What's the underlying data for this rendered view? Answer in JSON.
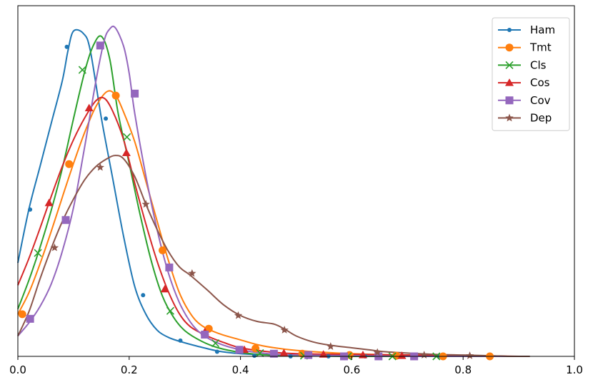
{
  "chart_data": {
    "type": "line",
    "title": "",
    "xlabel": "",
    "ylabel": "",
    "xlim": [
      0.0,
      1.0
    ],
    "ylim": [
      0.0,
      1.0
    ],
    "x_ticks": [
      {
        "value": 0.0,
        "label": "0.0"
      },
      {
        "value": 0.2,
        "label": "0.2"
      },
      {
        "value": 0.4,
        "label": "0.4"
      },
      {
        "value": 0.6,
        "label": "0.6"
      },
      {
        "value": 0.8,
        "label": "0.8"
      },
      {
        "value": 1.0,
        "label": "1.0"
      }
    ],
    "y_ticks_visible": false,
    "grid": false,
    "legend_position": "top-right",
    "series": [
      {
        "name": "Ham",
        "color": "#1f77b4",
        "marker": "dot",
        "curve": [
          [
            0.0,
            0.284
          ],
          [
            0.02,
            0.448
          ],
          [
            0.04,
            0.578
          ],
          [
            0.06,
            0.708
          ],
          [
            0.08,
            0.838
          ],
          [
            0.09,
            0.928
          ],
          [
            0.1,
            0.988
          ],
          [
            0.118,
            0.98
          ],
          [
            0.13,
            0.93
          ],
          [
            0.15,
            0.724
          ],
          [
            0.17,
            0.544
          ],
          [
            0.19,
            0.364
          ],
          [
            0.21,
            0.212
          ],
          [
            0.23,
            0.128
          ],
          [
            0.25,
            0.08
          ],
          [
            0.27,
            0.058
          ],
          [
            0.29,
            0.046
          ],
          [
            0.32,
            0.032
          ],
          [
            0.36,
            0.016
          ],
          [
            0.4,
            0.008
          ],
          [
            0.45,
            0.004
          ],
          [
            0.5,
            0.002
          ],
          [
            0.55,
            0.001
          ],
          [
            0.6,
            0.0
          ],
          [
            0.7,
            0.0
          ],
          [
            0.8,
            0.0
          ],
          [
            0.9,
            0.0
          ]
        ],
        "markers": [
          [
            0.022,
            0.446
          ],
          [
            0.088,
            0.94
          ],
          [
            0.158,
            0.722
          ],
          [
            0.225,
            0.186
          ],
          [
            0.292,
            0.048
          ],
          [
            0.358,
            0.014
          ],
          [
            0.425,
            0.002
          ],
          [
            0.49,
            0.0
          ],
          [
            0.558,
            0.0
          ],
          [
            0.624,
            0.0
          ],
          [
            0.69,
            0.0
          ],
          [
            0.757,
            0.0
          ]
        ]
      },
      {
        "name": "Tmt",
        "color": "#ff7f0e",
        "marker": "circle",
        "curve": [
          [
            0.0,
            0.128
          ],
          [
            0.02,
            0.194
          ],
          [
            0.04,
            0.282
          ],
          [
            0.06,
            0.38
          ],
          [
            0.08,
            0.484
          ],
          [
            0.1,
            0.586
          ],
          [
            0.12,
            0.68
          ],
          [
            0.14,
            0.758
          ],
          [
            0.16,
            0.804
          ],
          [
            0.175,
            0.794
          ],
          [
            0.19,
            0.742
          ],
          [
            0.21,
            0.652
          ],
          [
            0.23,
            0.532
          ],
          [
            0.25,
            0.412
          ],
          [
            0.27,
            0.294
          ],
          [
            0.29,
            0.194
          ],
          [
            0.31,
            0.13
          ],
          [
            0.33,
            0.094
          ],
          [
            0.36,
            0.07
          ],
          [
            0.4,
            0.05
          ],
          [
            0.44,
            0.032
          ],
          [
            0.5,
            0.018
          ],
          [
            0.6,
            0.008
          ],
          [
            0.7,
            0.004
          ],
          [
            0.8,
            0.002
          ],
          [
            0.85,
            0.0
          ],
          [
            0.91,
            0.0
          ]
        ],
        "markers": [
          [
            0.008,
            0.128
          ],
          [
            0.092,
            0.584
          ],
          [
            0.176,
            0.792
          ],
          [
            0.26,
            0.322
          ],
          [
            0.343,
            0.084
          ],
          [
            0.427,
            0.024
          ],
          [
            0.511,
            0.008
          ],
          [
            0.596,
            0.004
          ],
          [
            0.68,
            0.002
          ],
          [
            0.764,
            0.0
          ],
          [
            0.848,
            0.0
          ]
        ]
      },
      {
        "name": "Cls",
        "color": "#2ca02c",
        "marker": "x",
        "curve": [
          [
            0.0,
            0.144
          ],
          [
            0.02,
            0.232
          ],
          [
            0.04,
            0.332
          ],
          [
            0.06,
            0.444
          ],
          [
            0.08,
            0.572
          ],
          [
            0.1,
            0.722
          ],
          [
            0.12,
            0.864
          ],
          [
            0.135,
            0.942
          ],
          [
            0.15,
            0.972
          ],
          [
            0.165,
            0.904
          ],
          [
            0.18,
            0.74
          ],
          [
            0.2,
            0.586
          ],
          [
            0.22,
            0.428
          ],
          [
            0.24,
            0.288
          ],
          [
            0.26,
            0.182
          ],
          [
            0.28,
            0.118
          ],
          [
            0.3,
            0.078
          ],
          [
            0.33,
            0.046
          ],
          [
            0.36,
            0.026
          ],
          [
            0.4,
            0.012
          ],
          [
            0.45,
            0.004
          ],
          [
            0.5,
            0.002
          ],
          [
            0.6,
            0.0
          ],
          [
            0.7,
            0.0
          ],
          [
            0.8,
            0.0
          ],
          [
            0.9,
            0.0
          ]
        ],
        "markers": [
          [
            0.036,
            0.314
          ],
          [
            0.116,
            0.87
          ],
          [
            0.196,
            0.666
          ],
          [
            0.274,
            0.138
          ],
          [
            0.355,
            0.04
          ],
          [
            0.435,
            0.01
          ],
          [
            0.514,
            0.002
          ],
          [
            0.593,
            0.0
          ],
          [
            0.673,
            0.0
          ],
          [
            0.752,
            0.0
          ]
        ]
      },
      {
        "name": "Cos",
        "color": "#d62728",
        "marker": "triangle",
        "curve": [
          [
            0.0,
            0.216
          ],
          [
            0.02,
            0.298
          ],
          [
            0.04,
            0.39
          ],
          [
            0.06,
            0.486
          ],
          [
            0.08,
            0.578
          ],
          [
            0.1,
            0.658
          ],
          [
            0.12,
            0.724
          ],
          [
            0.14,
            0.776
          ],
          [
            0.155,
            0.784
          ],
          [
            0.17,
            0.746
          ],
          [
            0.19,
            0.658
          ],
          [
            0.21,
            0.526
          ],
          [
            0.23,
            0.402
          ],
          [
            0.25,
            0.29
          ],
          [
            0.27,
            0.198
          ],
          [
            0.29,
            0.13
          ],
          [
            0.31,
            0.09
          ],
          [
            0.34,
            0.062
          ],
          [
            0.37,
            0.042
          ],
          [
            0.4,
            0.026
          ],
          [
            0.45,
            0.014
          ],
          [
            0.5,
            0.008
          ],
          [
            0.6,
            0.006
          ],
          [
            0.7,
            0.004
          ],
          [
            0.8,
            0.002
          ],
          [
            0.9,
            0.0
          ]
        ],
        "markers": [
          [
            0.056,
            0.466
          ],
          [
            0.128,
            0.754
          ],
          [
            0.195,
            0.618
          ],
          [
            0.264,
            0.204
          ],
          [
            0.336,
            0.074
          ],
          [
            0.407,
            0.02
          ],
          [
            0.478,
            0.01
          ],
          [
            0.549,
            0.006
          ],
          [
            0.62,
            0.004
          ],
          [
            0.69,
            0.002
          ]
        ]
      },
      {
        "name": "Cov",
        "color": "#9467bd",
        "marker": "square",
        "curve": [
          [
            0.0,
            0.062
          ],
          [
            0.02,
            0.102
          ],
          [
            0.04,
            0.152
          ],
          [
            0.06,
            0.22
          ],
          [
            0.08,
            0.32
          ],
          [
            0.1,
            0.452
          ],
          [
            0.12,
            0.636
          ],
          [
            0.14,
            0.834
          ],
          [
            0.155,
            0.958
          ],
          [
            0.165,
            0.994
          ],
          [
            0.175,
            0.998
          ],
          [
            0.19,
            0.942
          ],
          [
            0.2,
            0.86
          ],
          [
            0.21,
            0.738
          ],
          [
            0.23,
            0.548
          ],
          [
            0.25,
            0.386
          ],
          [
            0.27,
            0.256
          ],
          [
            0.29,
            0.164
          ],
          [
            0.31,
            0.104
          ],
          [
            0.33,
            0.068
          ],
          [
            0.36,
            0.04
          ],
          [
            0.4,
            0.02
          ],
          [
            0.45,
            0.008
          ],
          [
            0.5,
            0.004
          ],
          [
            0.6,
            0.002
          ],
          [
            0.7,
            0.0
          ],
          [
            0.8,
            0.0
          ],
          [
            0.9,
            0.0
          ]
        ],
        "markers": [
          [
            0.022,
            0.114
          ],
          [
            0.086,
            0.414
          ],
          [
            0.148,
            0.944
          ],
          [
            0.21,
            0.798
          ],
          [
            0.272,
            0.27
          ],
          [
            0.336,
            0.066
          ],
          [
            0.398,
            0.02
          ],
          [
            0.46,
            0.008
          ],
          [
            0.522,
            0.004
          ],
          [
            0.586,
            0.0
          ],
          [
            0.648,
            0.0
          ],
          [
            0.712,
            0.0
          ]
        ]
      },
      {
        "name": "Dep",
        "color": "#8c564b",
        "marker": "star",
        "curve": [
          [
            0.0,
            0.062
          ],
          [
            0.02,
            0.136
          ],
          [
            0.04,
            0.236
          ],
          [
            0.06,
            0.328
          ],
          [
            0.08,
            0.41
          ],
          [
            0.1,
            0.478
          ],
          [
            0.12,
            0.536
          ],
          [
            0.14,
            0.576
          ],
          [
            0.16,
            0.6
          ],
          [
            0.175,
            0.61
          ],
          [
            0.19,
            0.6
          ],
          [
            0.21,
            0.546
          ],
          [
            0.23,
            0.462
          ],
          [
            0.25,
            0.386
          ],
          [
            0.27,
            0.32
          ],
          [
            0.29,
            0.272
          ],
          [
            0.31,
            0.246
          ],
          [
            0.34,
            0.202
          ],
          [
            0.37,
            0.156
          ],
          [
            0.4,
            0.124
          ],
          [
            0.43,
            0.106
          ],
          [
            0.46,
            0.098
          ],
          [
            0.48,
            0.082
          ],
          [
            0.5,
            0.062
          ],
          [
            0.53,
            0.044
          ],
          [
            0.56,
            0.034
          ],
          [
            0.6,
            0.026
          ],
          [
            0.63,
            0.02
          ],
          [
            0.66,
            0.014
          ],
          [
            0.7,
            0.01
          ],
          [
            0.75,
            0.006
          ],
          [
            0.8,
            0.004
          ],
          [
            0.85,
            0.002
          ],
          [
            0.88,
            0.0
          ],
          [
            0.92,
            0.0
          ]
        ],
        "markers": [
          [
            0.066,
            0.33
          ],
          [
            0.148,
            0.574
          ],
          [
            0.23,
            0.462
          ],
          [
            0.313,
            0.252
          ],
          [
            0.396,
            0.124
          ],
          [
            0.479,
            0.08
          ],
          [
            0.562,
            0.03
          ],
          [
            0.646,
            0.012
          ],
          [
            0.73,
            0.004
          ],
          [
            0.812,
            0.002
          ]
        ]
      }
    ]
  }
}
